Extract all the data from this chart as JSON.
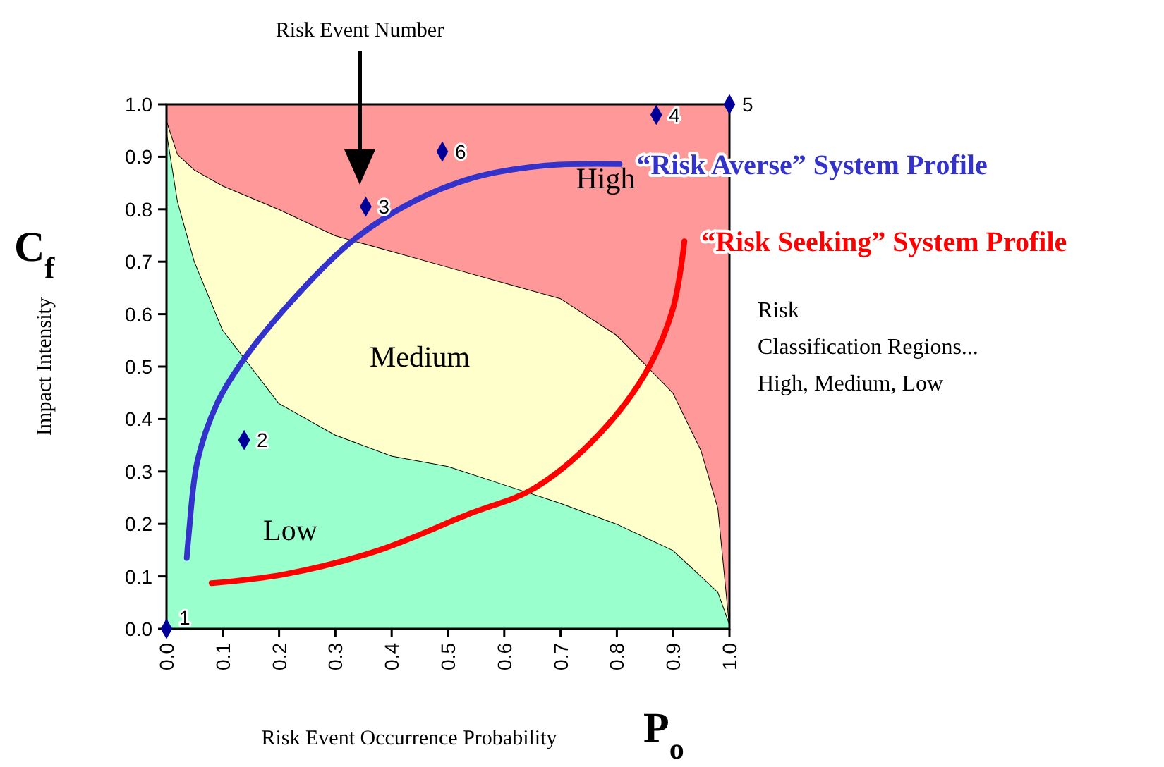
{
  "chart_data": {
    "type": "area",
    "stacked": true,
    "xlabel": "Risk Event Occurrence Probability",
    "ylabel": "Impact Intensity",
    "x": [
      0,
      0.02,
      0.05,
      0.1,
      0.2,
      0.3,
      0.4,
      0.5,
      0.6,
      0.7,
      0.8,
      0.9,
      0.95,
      0.98,
      1.0
    ],
    "series": [
      {
        "name": "Low",
        "color": "#99ffcc",
        "values": [
          0.95,
          0.815,
          0.7,
          0.57,
          0.43,
          0.37,
          0.33,
          0.31,
          0.275,
          0.24,
          0.2,
          0.15,
          0.1,
          0.07,
          0.01
        ]
      },
      {
        "name": "Medium",
        "color": "#ffffcc",
        "values": [
          0.02,
          0.09,
          0.175,
          0.275,
          0.37,
          0.38,
          0.39,
          0.38,
          0.385,
          0.39,
          0.36,
          0.3,
          0.24,
          0.16,
          0.0
        ]
      },
      {
        "name": "High",
        "color": "#ff9999",
        "values": [
          0.03,
          0.095,
          0.125,
          0.155,
          0.2,
          0.25,
          0.28,
          0.31,
          0.34,
          0.37,
          0.44,
          0.55,
          0.66,
          0.77,
          0.99
        ]
      },
      {
        "type": "line",
        "name": "“Risk Averse” System Profile",
        "color": "#3333cc",
        "x": [
          0.036,
          0.04,
          0.055,
          0.09,
          0.135,
          0.21,
          0.325,
          0.43,
          0.545,
          0.67,
          0.805
        ],
        "values": [
          0.135,
          0.185,
          0.32,
          0.43,
          0.51,
          0.61,
          0.735,
          0.81,
          0.86,
          0.883,
          0.886
        ]
      },
      {
        "type": "line",
        "name": "“Risk Seeking” System Profile",
        "color": "#ff0000",
        "x": [
          0.08,
          0.21,
          0.375,
          0.54,
          0.65,
          0.755,
          0.848,
          0.899,
          0.92
        ],
        "values": [
          0.087,
          0.104,
          0.149,
          0.22,
          0.266,
          0.356,
          0.482,
          0.608,
          0.739
        ]
      },
      {
        "type": "scatter",
        "color": "#000099",
        "marker": "diamond",
        "x": [
          0,
          0.138,
          0.354,
          0.87,
          1.0,
          0.49
        ],
        "values": [
          0,
          0.36,
          0.805,
          0.98,
          1.0,
          0.91
        ]
      }
    ],
    "xlim": [
      0,
      1
    ],
    "ylim": [
      0,
      1
    ],
    "xticks": [
      {
        "value": 0,
        "label": "0.0"
      },
      0.1,
      0.2,
      0.3,
      0.4,
      0.5,
      0.6,
      0.7,
      0.8,
      0.9,
      {
        "value": 1,
        "label": "1.0"
      }
    ],
    "yticks": [
      {
        "value": 0,
        "label": "0.0"
      },
      0.1,
      0.2,
      0.3,
      0.4,
      0.5,
      0.6,
      0.7,
      0.8,
      0.9,
      {
        "value": 1,
        "label": "1.0"
      }
    ],
    "grid": false,
    "annotations": [
      "Risk Event Number",
      {
        "text": "1",
        "x": 0,
        "y": 0
      },
      {
        "text": "2",
        "x": 0.138,
        "y": 0.36
      },
      {
        "text": "3",
        "x": 0.354,
        "y": 0.805
      },
      {
        "text": "4",
        "x": 0.87,
        "y": 0.98
      },
      {
        "text": "5",
        "x": 1.0,
        "y": 1.0
      },
      {
        "text": "6",
        "x": 0.49,
        "y": 0.91
      },
      "C$_{f}$",
      "P$_{o}$",
      "Risk\nClassification Regions...\nHigh, Medium, Low"
    ]
  }
}
